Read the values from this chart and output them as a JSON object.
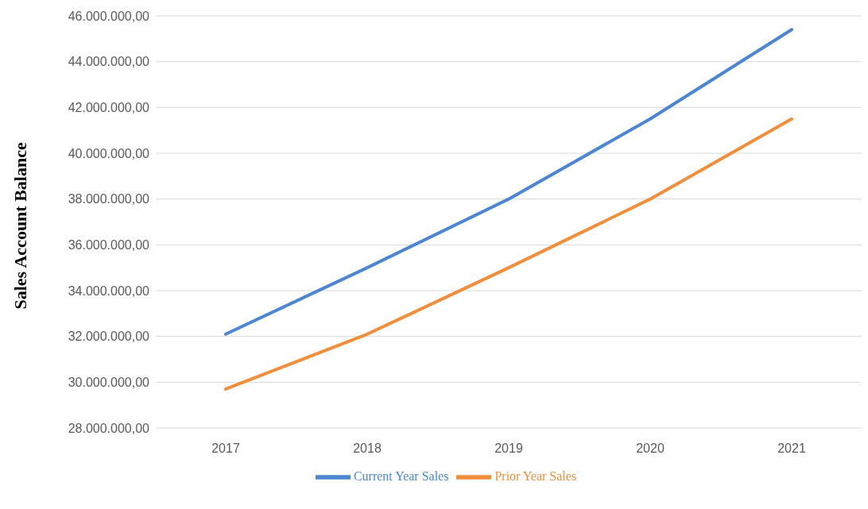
{
  "chart_data": {
    "type": "line",
    "ylabel": "Sales Account Balance",
    "categories": [
      "2017",
      "2018",
      "2019",
      "2020",
      "2021"
    ],
    "series": [
      {
        "name": "Current Year Sales",
        "color": "#4a86d4",
        "values": [
          32100000,
          35000000,
          38000000,
          41500000,
          45400000
        ]
      },
      {
        "name": "Prior Year Sales",
        "color": "#f28e3a",
        "values": [
          29700000,
          32100000,
          35000000,
          38000000,
          41500000
        ]
      }
    ],
    "ylim": [
      28000000,
      46000000
    ],
    "yticks": [
      {
        "value": 28000000,
        "label": "28.000.000,00"
      },
      {
        "value": 30000000,
        "label": "30.000.000,00"
      },
      {
        "value": 32000000,
        "label": "32.000.000,00"
      },
      {
        "value": 34000000,
        "label": "34.000.000,00"
      },
      {
        "value": 36000000,
        "label": "36.000.000,00"
      },
      {
        "value": 38000000,
        "label": "38.000.000,00"
      },
      {
        "value": 40000000,
        "label": "40.000.000,00"
      },
      {
        "value": 42000000,
        "label": "42.000.000,00"
      },
      {
        "value": 44000000,
        "label": "44.000.000,00"
      },
      {
        "value": 46000000,
        "label": "46.000.000,00"
      }
    ],
    "grid": "y",
    "legend": "bottom",
    "marker": "none",
    "line_style": "solid"
  }
}
